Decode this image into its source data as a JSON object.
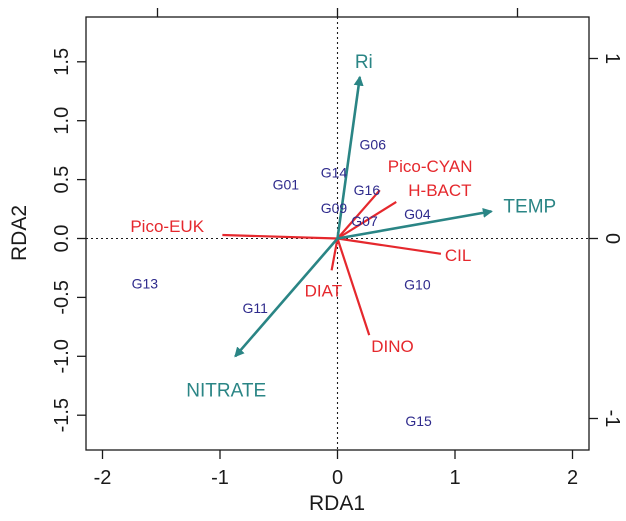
{
  "chart_data": {
    "type": "scatter",
    "subtype": "rda-biplot",
    "title": "",
    "xlabel": "RDA1",
    "ylabel": "RDA2",
    "xlim": [
      -2.0,
      2.0
    ],
    "ylim": [
      -1.8,
      1.8
    ],
    "x_ticks": [
      "-2",
      "-1",
      "0",
      "1",
      "2"
    ],
    "y_ticks": [
      "-1.5",
      "-1.0",
      "-0.5",
      "0.0",
      "0.5",
      "1.0",
      "1.5"
    ],
    "right_ticks": [
      "-1",
      "0",
      "1"
    ],
    "grid": false,
    "zero_lines": "dotted",
    "sites": [
      {
        "label": "G01",
        "x": -0.44,
        "y": 0.46
      },
      {
        "label": "G04",
        "x": 0.68,
        "y": 0.21
      },
      {
        "label": "G06",
        "x": 0.3,
        "y": 0.8
      },
      {
        "label": "G07",
        "x": 0.23,
        "y": 0.15
      },
      {
        "label": "G09",
        "x": -0.03,
        "y": 0.26
      },
      {
        "label": "G10",
        "x": 0.68,
        "y": -0.39
      },
      {
        "label": "G11",
        "x": -0.7,
        "y": -0.59
      },
      {
        "label": "G13",
        "x": -1.64,
        "y": -0.38
      },
      {
        "label": "G14",
        "x": -0.03,
        "y": 0.56
      },
      {
        "label": "G15",
        "x": 0.69,
        "y": -1.55
      },
      {
        "label": "G16",
        "x": 0.25,
        "y": 0.41
      }
    ],
    "species": [
      {
        "label": "Pico-EUK",
        "x": -0.98,
        "y": 0.03
      },
      {
        "label": "Pico-CYAN",
        "x": 0.36,
        "y": 0.41
      },
      {
        "label": "H-BACT",
        "x": 0.5,
        "y": 0.31
      },
      {
        "label": "CIL",
        "x": 0.88,
        "y": -0.13
      },
      {
        "label": "DIAT",
        "x": -0.05,
        "y": -0.27
      },
      {
        "label": "DINO",
        "x": 0.27,
        "y": -0.82
      }
    ],
    "environment": [
      {
        "label": "Ri",
        "x": 0.19,
        "y": 1.37
      },
      {
        "label": "TEMP",
        "x": 1.31,
        "y": 0.23
      },
      {
        "label": "NITRATE",
        "x": -0.87,
        "y": -1.0
      }
    ],
    "colors": {
      "sites": "#2e2a8c",
      "species": "#e5282d",
      "environment": "#2a8585",
      "axis": "#1a1a1a"
    }
  }
}
